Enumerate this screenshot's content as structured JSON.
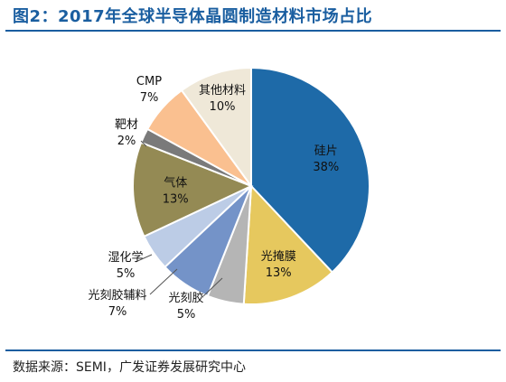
{
  "figure": {
    "title": "图2：2017年全球半导体晶圆制造材料市场占比",
    "source": "数据来源：SEMI，广发证券发展研究中心"
  },
  "chart_data": {
    "type": "pie",
    "title": "图2：2017年全球半导体晶圆制造材料市场占比",
    "unit": "%",
    "slices": [
      {
        "label": "硅片",
        "value": 38,
        "value_label": "38%",
        "color": "#1e6aa8"
      },
      {
        "label": "光掩膜",
        "value": 13,
        "value_label": "13%",
        "color": "#e6c85e"
      },
      {
        "label": "光刻胶",
        "value": 5,
        "value_label": "5%",
        "color": "#b5b5b5"
      },
      {
        "label": "光刻胶辅料",
        "value": 7,
        "value_label": "7%",
        "color": "#7493c8"
      },
      {
        "label": "湿化学",
        "value": 5,
        "value_label": "5%",
        "color": "#bccce6"
      },
      {
        "label": "气体",
        "value": 13,
        "value_label": "13%",
        "color": "#948a54"
      },
      {
        "label": "靶材",
        "value": 2,
        "value_label": "2%",
        "color": "#7a7a7a"
      },
      {
        "label": "CMP",
        "value": 7,
        "value_label": "7%",
        "color": "#fac090"
      },
      {
        "label": "其他材料",
        "value": 10,
        "value_label": "10%",
        "color": "#efe8d8"
      }
    ],
    "legend": "none"
  }
}
